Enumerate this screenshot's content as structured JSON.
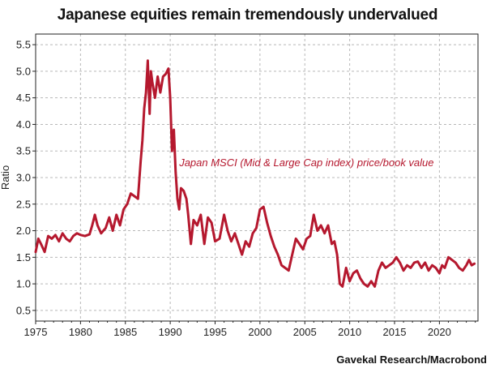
{
  "chart_data": {
    "type": "line",
    "title": "Japanese equities remain tremendously undervalued",
    "ylabel": "Ratio",
    "source": "Gavekal Research/Macrobond",
    "annotation": "Japan MSCI (Mid & Large Cap index) price/book value",
    "xlim": [
      1975,
      2024.3
    ],
    "ylim": [
      0.3,
      5.7
    ],
    "x_ticks": [
      "1975",
      "1980",
      "1985",
      "1990",
      "1995",
      "2000",
      "2005",
      "2010",
      "2015",
      "2020"
    ],
    "y_ticks": [
      "0.5",
      "1.0",
      "1.5",
      "2.0",
      "2.5",
      "3.0",
      "3.5",
      "4.0",
      "4.5",
      "5.0",
      "5.5"
    ],
    "grid": true,
    "colors": {
      "line": "#b5182e",
      "annotation": "#b5182e",
      "grid": "#b8b8b8"
    },
    "series": [
      {
        "x": [
          1975.0,
          1975.3,
          1975.6,
          1976.0,
          1976.4,
          1976.8,
          1977.2,
          1977.6,
          1978.0,
          1978.4,
          1978.8,
          1979.2,
          1979.6,
          1980.0,
          1980.5,
          1981.0,
          1981.3,
          1981.6,
          1981.9,
          1982.3,
          1982.8,
          1983.2,
          1983.6,
          1984.0,
          1984.4,
          1984.8,
          1985.2,
          1985.6,
          1986.0,
          1986.4,
          1986.7,
          1986.9,
          1987.1,
          1987.3,
          1987.5,
          1987.7,
          1987.85,
          1988.0,
          1988.3,
          1988.6,
          1988.9,
          1989.2,
          1989.5,
          1989.8,
          1990.0,
          1990.2,
          1990.4,
          1990.6,
          1990.8,
          1991.0,
          1991.2,
          1991.5,
          1991.8,
          1992.0,
          1992.3,
          1992.6,
          1993.0,
          1993.4,
          1993.8,
          1994.2,
          1994.6,
          1995.0,
          1995.5,
          1996.0,
          1996.4,
          1996.8,
          1997.2,
          1997.6,
          1998.0,
          1998.4,
          1998.8,
          1999.2,
          1999.6,
          2000.0,
          2000.4,
          2000.8,
          2001.2,
          2001.6,
          2002.0,
          2002.4,
          2002.8,
          2003.2,
          2003.6,
          2004.0,
          2004.4,
          2004.8,
          2005.2,
          2005.6,
          2006.0,
          2006.4,
          2006.8,
          2007.2,
          2007.6,
          2008.0,
          2008.3,
          2008.6,
          2008.9,
          2009.2,
          2009.6,
          2010.0,
          2010.4,
          2010.8,
          2011.2,
          2011.6,
          2012.0,
          2012.4,
          2012.8,
          2013.2,
          2013.6,
          2014.0,
          2014.4,
          2014.8,
          2015.2,
          2015.6,
          2016.0,
          2016.4,
          2016.8,
          2017.2,
          2017.6,
          2018.0,
          2018.4,
          2018.8,
          2019.2,
          2019.6,
          2020.0,
          2020.3,
          2020.6,
          2021.0,
          2021.4,
          2021.8,
          2022.2,
          2022.6,
          2023.0,
          2023.3,
          2023.6,
          2023.9
        ],
        "y": [
          1.6,
          1.85,
          1.75,
          1.6,
          1.9,
          1.85,
          1.92,
          1.8,
          1.95,
          1.85,
          1.8,
          1.9,
          1.95,
          1.92,
          1.9,
          1.93,
          2.1,
          2.3,
          2.1,
          1.95,
          2.05,
          2.25,
          2.0,
          2.3,
          2.1,
          2.4,
          2.5,
          2.7,
          2.65,
          2.6,
          3.3,
          3.7,
          4.3,
          4.6,
          5.2,
          4.2,
          5.0,
          4.8,
          4.5,
          4.9,
          4.6,
          4.9,
          4.95,
          5.05,
          4.5,
          3.5,
          3.9,
          3.1,
          2.6,
          2.4,
          2.8,
          2.75,
          2.6,
          2.3,
          1.75,
          2.2,
          2.1,
          2.3,
          1.75,
          2.25,
          2.15,
          1.8,
          1.85,
          2.3,
          2.0,
          1.8,
          1.95,
          1.75,
          1.55,
          1.8,
          1.7,
          1.95,
          2.05,
          2.4,
          2.45,
          2.15,
          1.9,
          1.7,
          1.55,
          1.35,
          1.3,
          1.25,
          1.55,
          1.85,
          1.75,
          1.65,
          1.85,
          1.9,
          2.3,
          2.0,
          2.1,
          1.95,
          2.1,
          1.75,
          1.8,
          1.55,
          1.0,
          0.95,
          1.3,
          1.05,
          1.2,
          1.25,
          1.1,
          1.0,
          0.95,
          1.05,
          0.95,
          1.25,
          1.4,
          1.3,
          1.35,
          1.4,
          1.5,
          1.4,
          1.25,
          1.35,
          1.3,
          1.4,
          1.42,
          1.3,
          1.4,
          1.25,
          1.35,
          1.3,
          1.2,
          1.35,
          1.3,
          1.5,
          1.45,
          1.4,
          1.3,
          1.25,
          1.35,
          1.45,
          1.35,
          1.38
        ]
      }
    ]
  }
}
